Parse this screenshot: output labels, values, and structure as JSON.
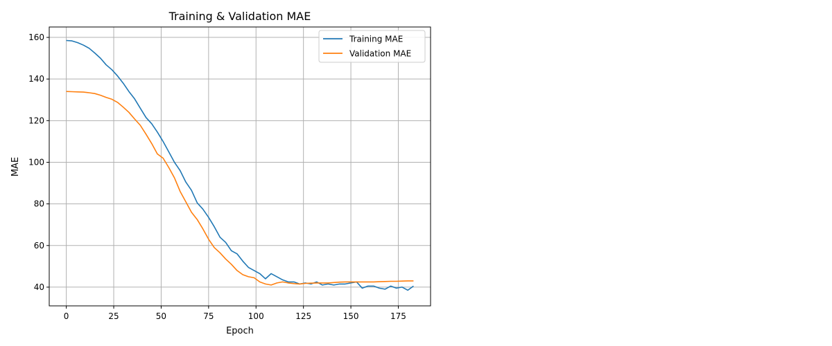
{
  "chart_data": {
    "type": "line",
    "title": "Training & Validation MAE",
    "xlabel": "Epoch",
    "ylabel": "MAE",
    "xlim": [
      -9,
      192
    ],
    "ylim": [
      31,
      165
    ],
    "xticks": [
      0,
      25,
      50,
      75,
      100,
      125,
      150,
      175
    ],
    "yticks": [
      40,
      60,
      80,
      100,
      120,
      140,
      160
    ],
    "grid": true,
    "legend_position": "top-right",
    "series": [
      {
        "name": "Training MAE",
        "color": "#1f77b4",
        "x": [
          0,
          3,
          6,
          9,
          12,
          15,
          18,
          21,
          24,
          27,
          30,
          33,
          36,
          39,
          42,
          45,
          48,
          51,
          54,
          57,
          60,
          63,
          66,
          69,
          72,
          75,
          78,
          81,
          84,
          87,
          90,
          93,
          96,
          99,
          102,
          105,
          108,
          111,
          114,
          117,
          120,
          123,
          126,
          129,
          132,
          135,
          138,
          141,
          144,
          147,
          150,
          153,
          156,
          159,
          162,
          165,
          168,
          171,
          174,
          177,
          180,
          183
        ],
        "values": [
          158.5,
          158.3,
          157.5,
          156.3,
          154.8,
          152.5,
          150.0,
          146.8,
          144.5,
          141.5,
          138.0,
          134.0,
          130.5,
          126.0,
          121.5,
          118.5,
          114.5,
          110.0,
          105.0,
          100.0,
          96.0,
          90.5,
          86.5,
          80.5,
          77.5,
          73.5,
          69.0,
          64.0,
          61.5,
          57.5,
          56.0,
          52.5,
          49.5,
          48.0,
          46.5,
          44.0,
          46.5,
          45.0,
          43.5,
          42.5,
          42.5,
          41.5,
          42.0,
          41.5,
          42.5,
          41.0,
          41.5,
          41.0,
          41.5,
          41.5,
          42.0,
          42.5,
          39.5,
          40.5,
          40.5,
          39.5,
          39.0,
          40.5,
          39.5,
          40.0,
          38.5,
          40.5
        ]
      },
      {
        "name": "Validation MAE",
        "color": "#ff7f0e",
        "x": [
          0,
          3,
          6,
          9,
          12,
          15,
          18,
          21,
          24,
          27,
          30,
          33,
          36,
          39,
          42,
          45,
          48,
          51,
          54,
          57,
          60,
          63,
          66,
          69,
          72,
          75,
          78,
          81,
          84,
          87,
          90,
          93,
          96,
          99,
          102,
          105,
          108,
          111,
          114,
          117,
          120,
          123,
          126,
          129,
          132,
          135,
          138,
          141,
          144,
          147,
          150,
          153,
          156,
          159,
          162,
          165,
          168,
          171,
          174,
          177,
          180,
          183
        ],
        "values": [
          134.0,
          133.9,
          133.8,
          133.7,
          133.4,
          133.0,
          132.2,
          131.2,
          130.3,
          128.8,
          126.5,
          124.0,
          120.8,
          117.8,
          113.5,
          109.0,
          104.0,
          102.0,
          97.5,
          92.5,
          86.0,
          81.0,
          76.0,
          72.5,
          68.0,
          63.0,
          59.0,
          56.5,
          53.5,
          51.0,
          48.0,
          46.0,
          45.0,
          44.5,
          42.5,
          41.5,
          41.0,
          42.0,
          42.5,
          42.0,
          41.7,
          41.5,
          41.8,
          41.9,
          42.0,
          42.0,
          42.0,
          42.2,
          42.4,
          42.5,
          42.5,
          42.5,
          42.5,
          42.5,
          42.5,
          42.6,
          42.7,
          42.8,
          42.8,
          42.9,
          43.0,
          43.0
        ]
      }
    ]
  }
}
